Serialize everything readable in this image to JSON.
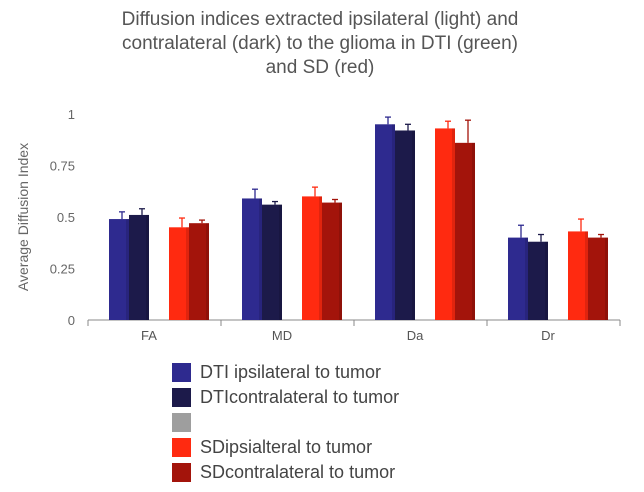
{
  "chart_data": {
    "type": "bar",
    "title_lines": [
      "Diffusion indices extracted ipsilateral (light) and",
      "contralateral (dark) to the glioma in DTI (green)",
      "and SD (red)"
    ],
    "xlabel": "",
    "ylabel": "Average Diffusion Index",
    "ylim": [
      0,
      1
    ],
    "yticks": [
      "0",
      "0.25",
      "0.5",
      "0.75",
      "1"
    ],
    "ytick_values": [
      0,
      0.25,
      0.5,
      0.75,
      1
    ],
    "grid": false,
    "categories": [
      "FA",
      "MD",
      "Da",
      "Dr"
    ],
    "series": [
      {
        "name": "DTI ipsilateral to tumor",
        "color": "#2e2a8f",
        "values": [
          0.49,
          0.59,
          0.95,
          0.4
        ],
        "errors": [
          0.035,
          0.045,
          0.035,
          0.06
        ]
      },
      {
        "name": "DTIcontralateral to tumor",
        "color": "#1c1a4a",
        "values": [
          0.51,
          0.56,
          0.92,
          0.38
        ],
        "errors": [
          0.03,
          0.015,
          0.03,
          0.035
        ]
      },
      {
        "name": "",
        "color": "#9e9e9e",
        "values": [
          null,
          null,
          null,
          null
        ],
        "errors": [
          0,
          0,
          0,
          0
        ]
      },
      {
        "name": "SDipsialteral to tumor",
        "color": "#ff2a10",
        "values": [
          0.45,
          0.6,
          0.93,
          0.43
        ],
        "errors": [
          0.045,
          0.045,
          0.035,
          0.06
        ]
      },
      {
        "name": "SDcontralateral to tumor",
        "color": "#a3140b",
        "values": [
          0.47,
          0.57,
          0.86,
          0.4
        ],
        "errors": [
          0.015,
          0.015,
          0.11,
          0.015
        ]
      }
    ],
    "legend_position": "bottom"
  }
}
